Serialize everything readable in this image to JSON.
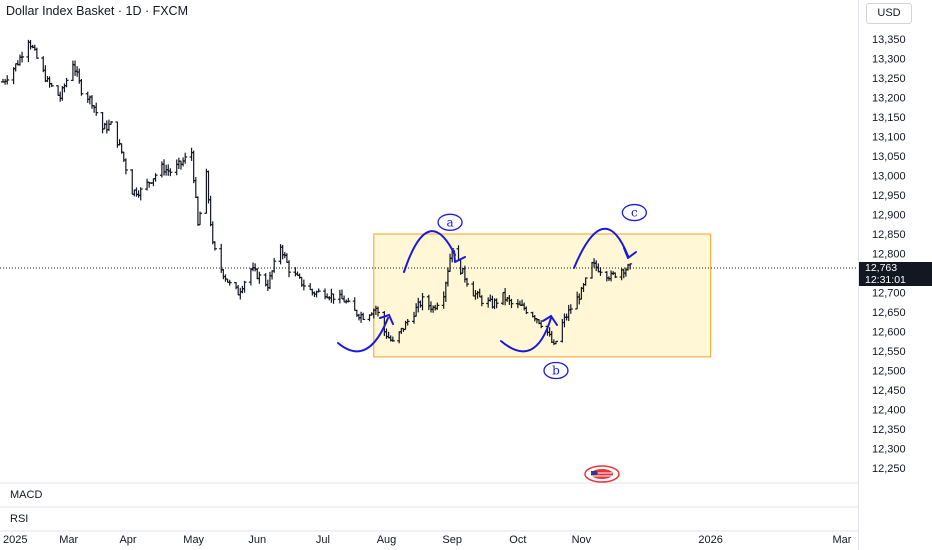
{
  "header": {
    "title": "Dollar Index Basket · 1D · FXCM",
    "currency": "USD"
  },
  "price": {
    "last": "12,763",
    "countdown": "12:31:01"
  },
  "panes": {
    "macd": "MACD",
    "rsi": "RSI"
  },
  "colors": {
    "candles": "#131722",
    "annotation": "#1a1adb",
    "box_fill": "#fff3c4",
    "box_border": "#f5b041"
  },
  "chart_data": {
    "type": "ohlc",
    "ylim": [
      12220,
      13400
    ],
    "y_ticks": [
      13350,
      13300,
      13250,
      13200,
      13150,
      13100,
      13050,
      13000,
      12950,
      12900,
      12850,
      12800,
      12750,
      12700,
      12650,
      12600,
      12550,
      12500,
      12450,
      12400,
      12350,
      12300,
      12250
    ],
    "y_tick_labels": [
      "13,350",
      "13,300",
      "13,250",
      "13,200",
      "13,150",
      "13,100",
      "13,050",
      "13,000",
      "12,950",
      "12,900",
      "12,850",
      "12,800",
      "12,750",
      "12,700",
      "12,650",
      "12,600",
      "12,550",
      "12,500",
      "12,450",
      "12,400",
      "12,350",
      "12,300",
      "12,250"
    ],
    "x_ticks": [
      {
        "date": "2025-01-01",
        "label": "2025"
      },
      {
        "date": "2025-02-01",
        "label": "Mar"
      },
      {
        "date": "2025-03-01",
        "label": "Apr"
      },
      {
        "date": "2025-04-01",
        "label": "May"
      },
      {
        "date": "2025-05-01",
        "label": "Jun"
      },
      {
        "date": "2025-06-01",
        "label": "Jul"
      },
      {
        "date": "2025-07-01",
        "label": "Aug"
      },
      {
        "date": "2025-08-01",
        "label": "Sep"
      },
      {
        "date": "2025-09-01",
        "label": "Oct"
      },
      {
        "date": "2025-10-01",
        "label": "Nov"
      },
      {
        "date": "2025-12-01",
        "label": "2026"
      },
      {
        "date": "2026-02-01",
        "label": "Mar"
      }
    ],
    "closes": [
      [
        "2025-01-01",
        13240
      ],
      [
        "2025-01-08",
        13290
      ],
      [
        "2025-01-13",
        13350
      ],
      [
        "2025-01-17",
        13300
      ],
      [
        "2025-01-22",
        13240
      ],
      [
        "2025-01-28",
        13200
      ],
      [
        "2025-02-03",
        13290
      ],
      [
        "2025-02-07",
        13220
      ],
      [
        "2025-02-12",
        13190
      ],
      [
        "2025-02-17",
        13120
      ],
      [
        "2025-02-21",
        13130
      ],
      [
        "2025-02-26",
        13060
      ],
      [
        "2025-03-03",
        12960
      ],
      [
        "2025-03-07",
        12960
      ],
      [
        "2025-03-12",
        12990
      ],
      [
        "2025-03-17",
        13020
      ],
      [
        "2025-03-21",
        13010
      ],
      [
        "2025-03-26",
        13030
      ],
      [
        "2025-03-31",
        13060
      ],
      [
        "2025-04-03",
        12870
      ],
      [
        "2025-04-07",
        13000
      ],
      [
        "2025-04-10",
        12820
      ],
      [
        "2025-04-14",
        12760
      ],
      [
        "2025-04-18",
        12720
      ],
      [
        "2025-04-22",
        12700
      ],
      [
        "2025-04-28",
        12760
      ],
      [
        "2025-05-02",
        12740
      ],
      [
        "2025-05-06",
        12720
      ],
      [
        "2025-05-12",
        12820
      ],
      [
        "2025-05-16",
        12760
      ],
      [
        "2025-05-21",
        12730
      ],
      [
        "2025-05-27",
        12700
      ],
      [
        "2025-06-02",
        12700
      ],
      [
        "2025-06-06",
        12690
      ],
      [
        "2025-06-11",
        12680
      ],
      [
        "2025-06-16",
        12650
      ],
      [
        "2025-06-20",
        12640
      ],
      [
        "2025-06-26",
        12660
      ],
      [
        "2025-06-30",
        12600
      ],
      [
        "2025-07-04",
        12570
      ],
      [
        "2025-07-09",
        12610
      ],
      [
        "2025-07-14",
        12650
      ],
      [
        "2025-07-18",
        12680
      ],
      [
        "2025-07-23",
        12660
      ],
      [
        "2025-07-28",
        12700
      ],
      [
        "2025-08-01",
        12820
      ],
      [
        "2025-08-05",
        12760
      ],
      [
        "2025-08-11",
        12700
      ],
      [
        "2025-08-15",
        12680
      ],
      [
        "2025-08-20",
        12670
      ],
      [
        "2025-08-25",
        12690
      ],
      [
        "2025-08-29",
        12670
      ],
      [
        "2025-09-04",
        12660
      ],
      [
        "2025-09-09",
        12640
      ],
      [
        "2025-09-14",
        12610
      ],
      [
        "2025-09-18",
        12560
      ],
      [
        "2025-09-22",
        12620
      ],
      [
        "2025-09-26",
        12660
      ],
      [
        "2025-10-01",
        12700
      ],
      [
        "2025-10-06",
        12770
      ],
      [
        "2025-10-10",
        12760
      ],
      [
        "2025-10-15",
        12740
      ],
      [
        "2025-10-20",
        12760
      ],
      [
        "2025-10-24",
        12763
      ]
    ],
    "annotations": {
      "box": {
        "x0": "2025-06-25",
        "x1": "2025-12-01",
        "y0": 12535,
        "y1": 12850
      },
      "labels": [
        {
          "text": "a",
          "date": "2025-07-31",
          "value": 12880
        },
        {
          "text": "b",
          "date": "2025-09-19",
          "value": 12500
        },
        {
          "text": "c",
          "date": "2025-10-26",
          "value": 12905
        }
      ]
    }
  }
}
